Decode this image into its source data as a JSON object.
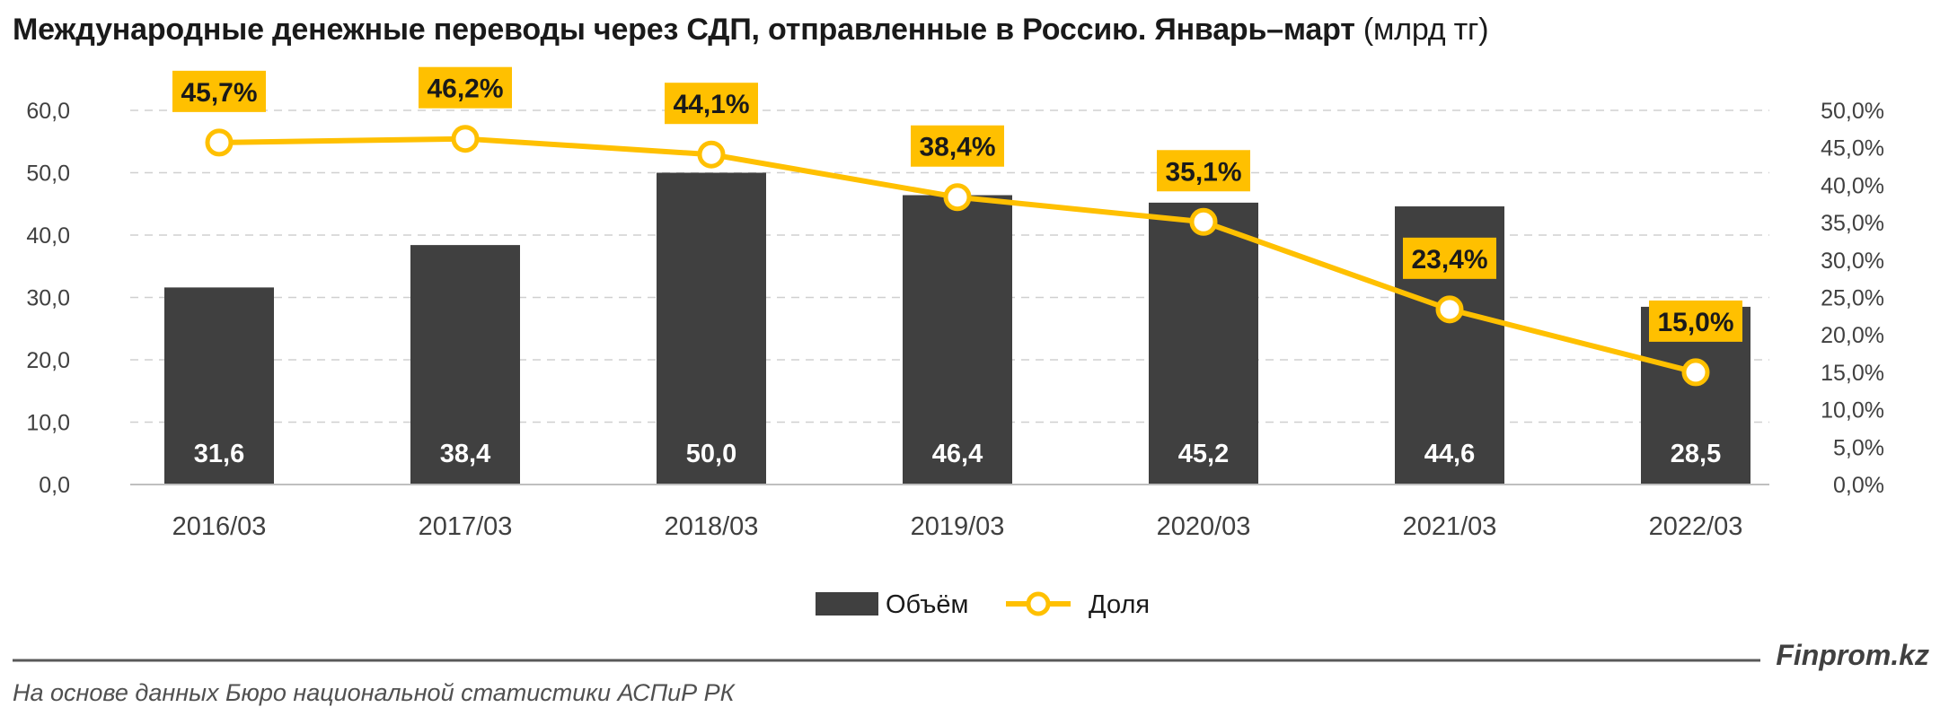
{
  "title": {
    "main": "Международные денежные переводы через СДП, отправленные в Россию. Январь–март",
    "unit": "(млрд тг)"
  },
  "chart_data": {
    "type": "bar",
    "categories": [
      "2016/03",
      "2017/03",
      "2018/03",
      "2019/03",
      "2020/03",
      "2021/03",
      "2022/03"
    ],
    "series": [
      {
        "name": "Объём",
        "type": "bar",
        "axis": "left",
        "values": [
          31.6,
          38.4,
          50.0,
          46.4,
          45.2,
          44.6,
          28.5
        ],
        "labels": [
          "31,6",
          "38,4",
          "50,0",
          "46,4",
          "45,2",
          "44,6",
          "28,5"
        ],
        "color": "#404040"
      },
      {
        "name": "Доля",
        "type": "line",
        "axis": "right",
        "values": [
          45.7,
          46.2,
          44.1,
          38.4,
          35.1,
          23.4,
          15.0
        ],
        "labels": [
          "45,7%",
          "46,2%",
          "44,1%",
          "38,4%",
          "35,1%",
          "23,4%",
          "15,0%"
        ],
        "color": "#FFC000"
      }
    ],
    "y_left": {
      "ylim": [
        0,
        60
      ],
      "ticks": [
        "0,0",
        "10,0",
        "20,0",
        "30,0",
        "40,0",
        "50,0",
        "60,0"
      ]
    },
    "y_right": {
      "ylim": [
        0,
        50
      ],
      "ticks": [
        "0,0%",
        "5,0%",
        "10,0%",
        "15,0%",
        "20,0%",
        "25,0%",
        "30,0%",
        "35,0%",
        "40,0%",
        "45,0%",
        "50,0%"
      ]
    },
    "grid": true,
    "legend_position": "bottom-center"
  },
  "footer": {
    "brand": "Finprom.kz",
    "source": "На основе данных Бюро национальной статистики АСПиР РК"
  }
}
